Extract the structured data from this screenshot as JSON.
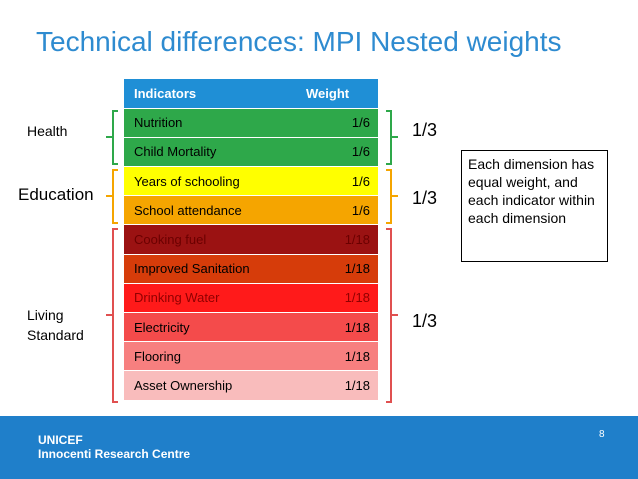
{
  "slide": {
    "title": "Technical differences: MPI Nested weights",
    "page_number": "8"
  },
  "table": {
    "headers": {
      "indicator": "Indicators",
      "weight": "Weight"
    },
    "header_color": "#1f8fd6",
    "rows": [
      {
        "indicator": "Nutrition",
        "weight": "1/6",
        "color": "#2ea84a",
        "text_color": "#000000"
      },
      {
        "indicator": "Child Mortality",
        "weight": "1/6",
        "color": "#2ea84a",
        "text_color": "#000000"
      },
      {
        "indicator": "Years of schooling",
        "weight": "1/6",
        "color": "#ffff00",
        "text_color": "#000000"
      },
      {
        "indicator": "School attendance",
        "weight": "1/6",
        "color": "#f5a500",
        "text_color": "#000000"
      },
      {
        "indicator": "Cooking fuel",
        "weight": "1/18",
        "color": "#9b1212",
        "text_color": "#6b0000"
      },
      {
        "indicator": "Improved Sanitation",
        "weight": "1/18",
        "color": "#d63c0a",
        "text_color": "#000000"
      },
      {
        "indicator": "Drinking Water",
        "weight": "1/18",
        "color": "#ff1a1a",
        "text_color": "#8f0000"
      },
      {
        "indicator": "Electricity",
        "weight": "1/18",
        "color": "#f44b4b",
        "text_color": "#000000"
      },
      {
        "indicator": "Flooring",
        "weight": "1/18",
        "color": "#f77f7f",
        "text_color": "#000000"
      },
      {
        "indicator": "Asset Ownership",
        "weight": "1/18",
        "color": "#f9bcbc",
        "text_color": "#000000"
      }
    ]
  },
  "dimensions": {
    "health": {
      "label": "Health",
      "share": "1/3"
    },
    "education": {
      "label": "Education",
      "share": "1/3"
    },
    "living": {
      "label_line1": "Living",
      "label_line2": "Standard",
      "share": "1/3"
    }
  },
  "note": {
    "text": "Each dimension has equal weight, and each indicator within each dimension"
  },
  "footer": {
    "org_line1": "UNICEF",
    "org_line2": "Innocenti Research Centre",
    "bg_color": "#1f7fca"
  },
  "colors": {
    "title": "#2e8bd0",
    "health_bracket": "#2ea84a",
    "education_bracket": "#f5a500",
    "living_bracket": "#e05050"
  }
}
